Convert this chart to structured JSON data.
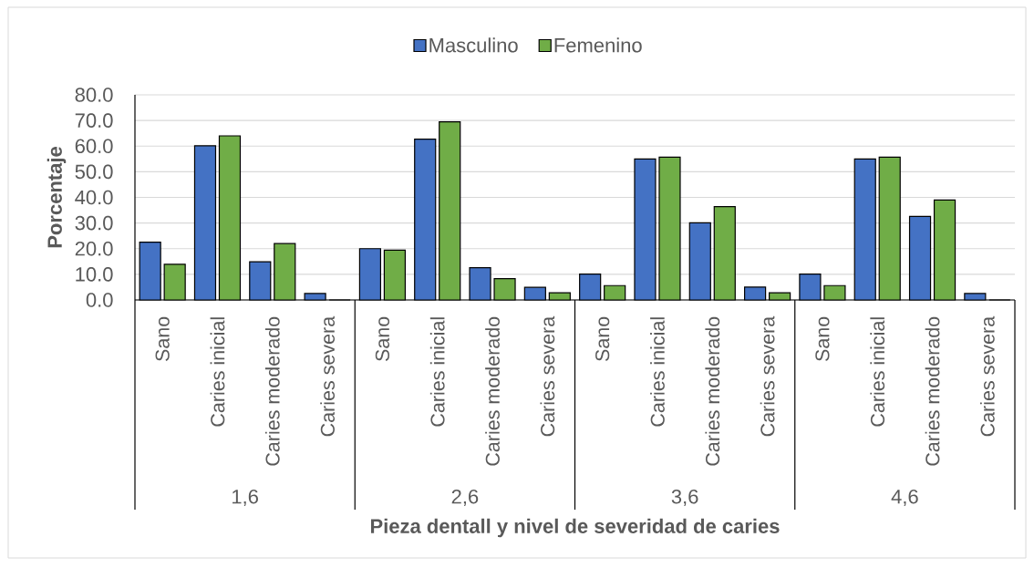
{
  "chart_data": {
    "type": "bar",
    "xlabel": "Pieza dentall y nivel de severidad de caries",
    "ylabel": "Porcentaje",
    "categories": [
      "Sano",
      "Caries inicial",
      "Caries moderado",
      "Caries severa",
      "Sano",
      "Caries inicial",
      "Caries moderado",
      "Caries severa",
      "Sano",
      "Caries inicial",
      "Caries moderado",
      "Caries severa",
      "Sano",
      "Caries inicial",
      "Caries moderado",
      "Caries severa"
    ],
    "series": [
      {
        "name": "Masculino",
        "color": "#4472c4",
        "values": [
          22.5,
          60.1,
          14.9,
          2.5,
          20.0,
          62.7,
          12.6,
          4.9,
          10.1,
          55.0,
          30.1,
          5.0,
          10.1,
          55.0,
          32.6,
          2.5
        ]
      },
      {
        "name": "Femenino",
        "color": "#70ad47",
        "values": [
          13.9,
          64.0,
          22.0,
          0,
          19.4,
          69.5,
          8.3,
          2.8,
          5.6,
          55.7,
          36.4,
          2.8,
          5.6,
          55.7,
          39.0,
          0
        ]
      }
    ],
    "ylim": [
      0,
      80
    ],
    "yticks": [
      {
        "value": 0,
        "label": "0.0"
      },
      {
        "value": 10,
        "label": "10.0"
      },
      {
        "value": 20,
        "label": "20.0"
      },
      {
        "value": 30,
        "label": "30.0"
      },
      {
        "value": 40,
        "label": "40.0"
      },
      {
        "value": 50,
        "label": "50.0"
      },
      {
        "value": 60,
        "label": "60.0"
      },
      {
        "value": 70,
        "label": "70.0"
      },
      {
        "value": 80,
        "label": "80.0"
      }
    ],
    "grid": "y",
    "legend": "top",
    "annotations": [
      "1,6",
      "2,6",
      "3,6",
      "4,6"
    ]
  }
}
